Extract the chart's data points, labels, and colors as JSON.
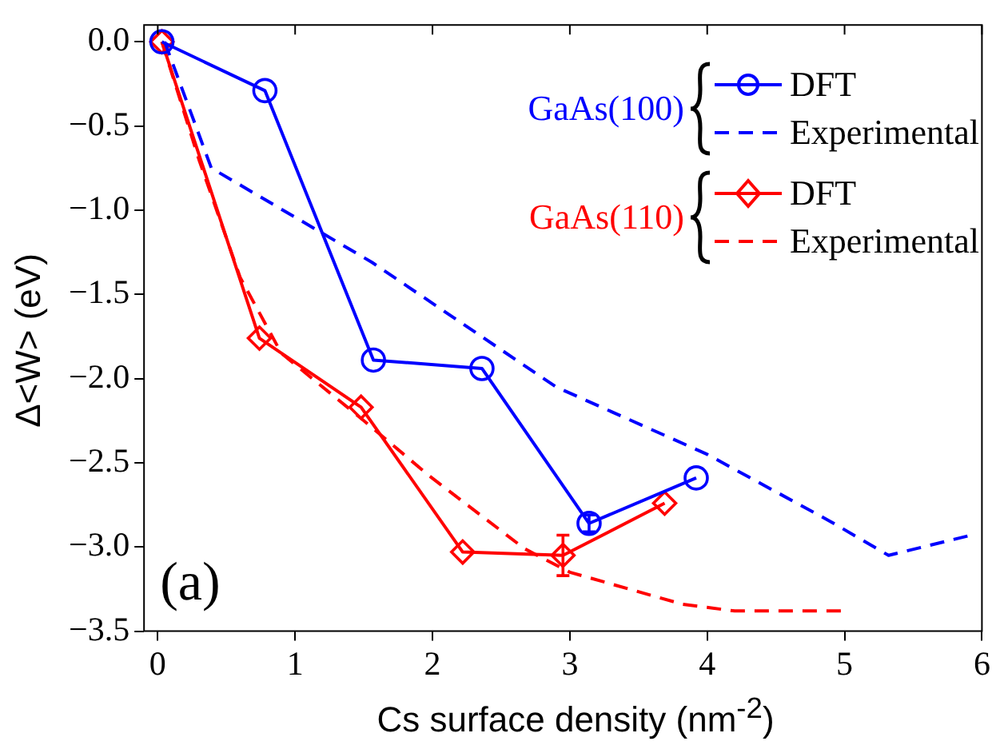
{
  "chart_data": {
    "type": "line",
    "xlabel": "Cs surface density (nm$^{-2}$)",
    "ylabel": "Δ<W> (eV)",
    "xlim": [
      -0.1,
      6
    ],
    "xticks": [
      0,
      1,
      2,
      3,
      4,
      5,
      6
    ],
    "ylim": [
      -3.5,
      0.1
    ],
    "yticks": [
      {
        "value": 0,
        "label": "0.0"
      },
      -0.5,
      {
        "value": -1,
        "label": "−1.0"
      },
      -1.5,
      {
        "value": -2,
        "label": "−2.0"
      },
      -2.5,
      {
        "value": -3,
        "label": "−3.0"
      },
      -3.5
    ],
    "grid": false,
    "legend": "top right",
    "annotations": [
      "GaAs(100)",
      "GaAs(110)",
      "(a)"
    ],
    "series": [
      {
        "name": "DFT",
        "color": "#0000ff",
        "marker": "circle",
        "line_style": "solid",
        "x": [
          0.03,
          0.78,
          1.57,
          2.36,
          3.14,
          3.92
        ],
        "values": [
          0,
          -0.29,
          -1.89,
          -1.94,
          -2.86,
          -2.59
        ],
        "errors": [
          null,
          null,
          null,
          null,
          0.05,
          null
        ]
      },
      {
        "name": "Experimental",
        "color": "#0000ff",
        "marker": "none",
        "line_style": "dashed",
        "x": [
          0.05,
          0.39,
          1.56,
          2.9,
          4.0,
          4.9,
          5.32,
          5.92
        ],
        "values": [
          0,
          -0.75,
          -1.31,
          -2.05,
          -2.45,
          -2.85,
          -3.05,
          -2.93
        ]
      },
      {
        "name": "DFT",
        "color": "#ff0000",
        "marker": "diamond",
        "line_style": "solid",
        "x": [
          0.03,
          0.74,
          1.48,
          2.22,
          2.95,
          3.69
        ],
        "values": [
          0,
          -1.76,
          -2.17,
          -3.03,
          -3.05,
          -2.74
        ],
        "errors": [
          null,
          null,
          null,
          null,
          0.12,
          null
        ]
      },
      {
        "name": "Experimental",
        "color": "#ff0000",
        "marker": "none",
        "line_style": "dashed",
        "x": [
          0.03,
          0.3,
          0.6,
          0.9,
          1.5,
          1.98,
          2.67,
          3.0,
          3.82,
          4.2,
          4.99
        ],
        "values": [
          0,
          -0.7,
          -1.4,
          -1.85,
          -2.25,
          -2.58,
          -3.01,
          -3.15,
          -3.34,
          -3.38,
          -3.38
        ]
      }
    ]
  }
}
